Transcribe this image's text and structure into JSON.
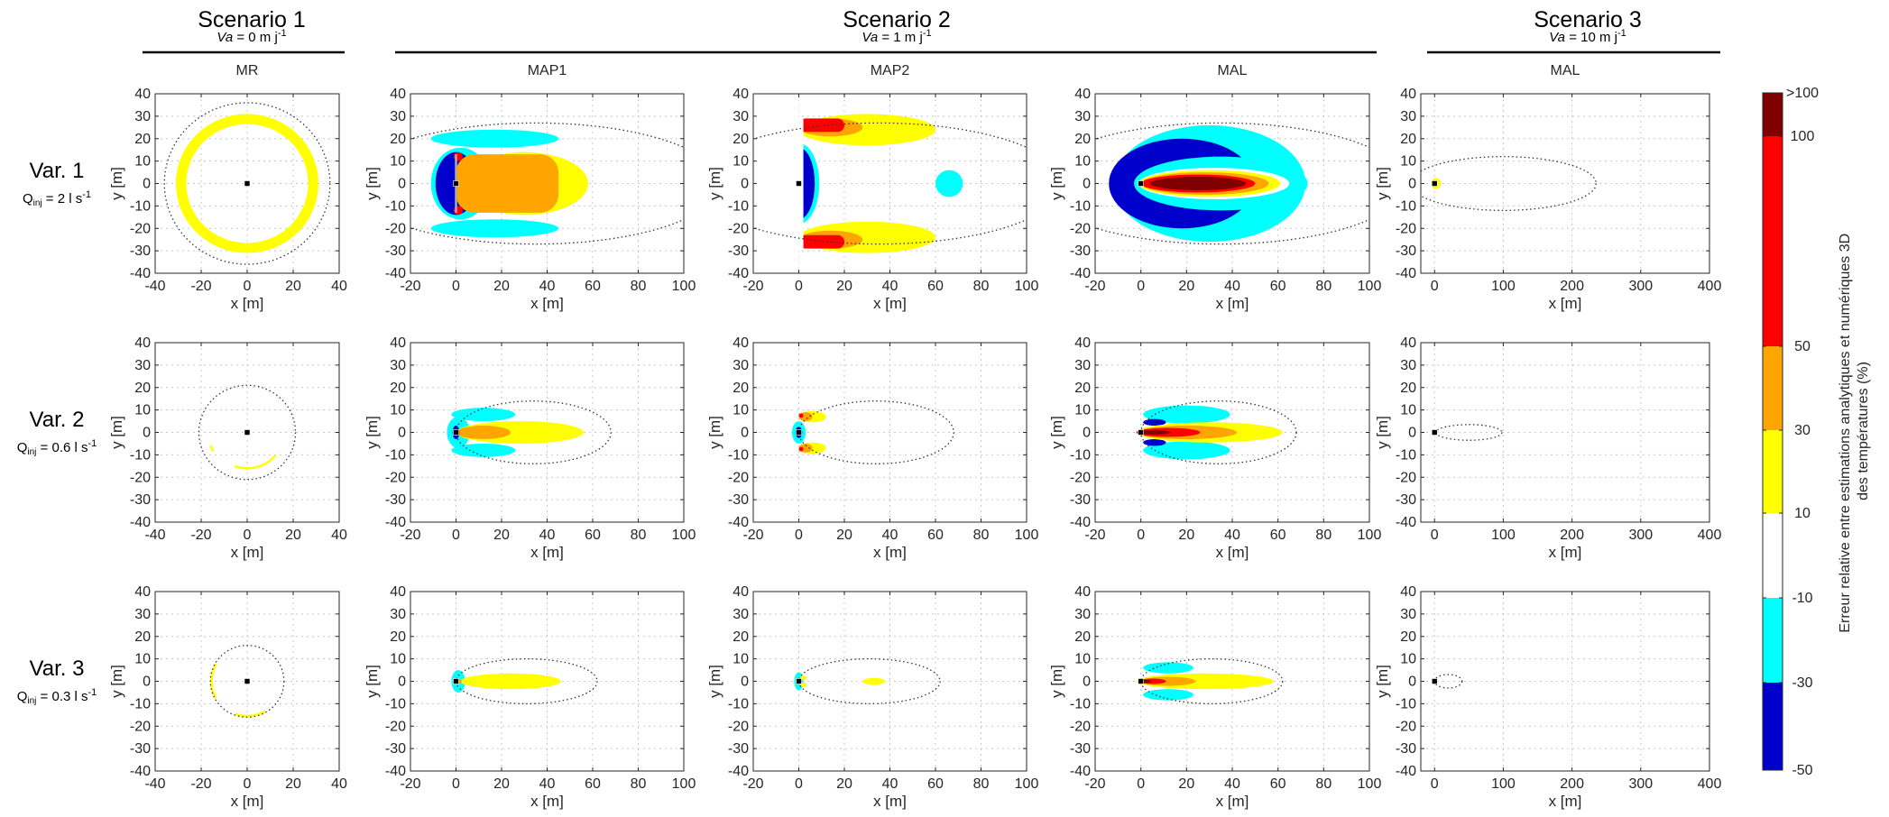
{
  "chart_data": {
    "type": "contour-map-grid",
    "scenarios": [
      {
        "name": "Scenario 1",
        "velocity_symbol": "Va",
        "velocity_text": " = 0 m j",
        "velocity_exp": "-1"
      },
      {
        "name": "Scenario 2",
        "velocity_symbol": "Va",
        "velocity_text": " = 1 m j",
        "velocity_exp": "-1"
      },
      {
        "name": "Scenario 3",
        "velocity_symbol": "Va",
        "velocity_text": " = 10 m j",
        "velocity_exp": "-1"
      }
    ],
    "columns": [
      {
        "title": "MR",
        "scenario": 0,
        "xlim": [
          -40,
          40
        ],
        "xticks": [
          -40,
          -20,
          0,
          20,
          40
        ]
      },
      {
        "title": "MAP1",
        "scenario": 1,
        "xlim": [
          -20,
          100
        ],
        "xticks": [
          -20,
          0,
          20,
          40,
          60,
          80,
          100
        ]
      },
      {
        "title": "MAP2",
        "scenario": 1,
        "xlim": [
          -20,
          100
        ],
        "xticks": [
          -20,
          0,
          20,
          40,
          60,
          80,
          100
        ]
      },
      {
        "title": "MAL",
        "scenario": 1,
        "xlim": [
          -20,
          100
        ],
        "xticks": [
          -20,
          0,
          20,
          40,
          60,
          80,
          100
        ]
      },
      {
        "title": "MAL",
        "scenario": 2,
        "xlim": [
          -20,
          400
        ],
        "xticks": [
          0,
          100,
          200,
          300,
          400
        ]
      }
    ],
    "rows": [
      {
        "label": "Var. 1",
        "q_prefix": "Q",
        "q_sub": "inj",
        "q_value": " = 2 l s",
        "q_exp": "-1"
      },
      {
        "label": "Var. 2",
        "q_prefix": "Q",
        "q_sub": "inj",
        "q_value": " = 0.6 l s",
        "q_exp": "-1"
      },
      {
        "label": "Var. 3",
        "q_prefix": "Q",
        "q_sub": "inj",
        "q_value": " = 0.3 l s",
        "q_exp": "-1"
      }
    ],
    "ylim": [
      -40,
      40
    ],
    "yticks": [
      -40,
      -30,
      -20,
      -10,
      0,
      10,
      20,
      30,
      40
    ],
    "xlabel": "x [m]",
    "ylabel": "y [m]",
    "grid": true,
    "colorbar": {
      "label_line1": "Erreur relative entre estimations analytiques et numériques 3D",
      "label_line2": "des  températures (%)",
      "bands": [
        {
          "from": -50,
          "to": -30,
          "color": "#0000cc"
        },
        {
          "from": -30,
          "to": -10,
          "color": "#00ffff"
        },
        {
          "from": -10,
          "to": 10,
          "color": "#ffffff"
        },
        {
          "from": 10,
          "to": 30,
          "color": "#ffff00"
        },
        {
          "from": 30,
          "to": 50,
          "color": "#ffa500"
        },
        {
          "from": 50,
          "to": 100,
          "color": "#ff0000"
        },
        {
          "from": 100,
          "to": ">100",
          "color": "#800000"
        }
      ],
      "tick_labels": [
        "-50",
        "-30",
        "-10",
        "10",
        "30",
        "50",
        "100",
        ">100"
      ]
    },
    "panels": [
      {
        "row": 0,
        "col": 0,
        "boundary": {
          "cx": 0,
          "cy": 0,
          "rx": 36,
          "ry": 36
        },
        "regions": [
          {
            "shape": "ring",
            "cx": 0,
            "cy": 0,
            "r_out": 31,
            "r_in": 26.5,
            "color": "#ffff00"
          }
        ]
      },
      {
        "row": 0,
        "col": 1,
        "boundary": {
          "cx": 35,
          "cy": 0,
          "rx": 81,
          "ry": 27
        },
        "regions": [
          {
            "shape": "ellipse",
            "cx": 17,
            "cy": 20,
            "rx": 28,
            "ry": 4,
            "color": "#00ffff"
          },
          {
            "shape": "ellipse",
            "cx": 17,
            "cy": -20,
            "rx": 28,
            "ry": 4,
            "color": "#00ffff"
          },
          {
            "shape": "ellipse",
            "cx": 2,
            "cy": 0,
            "rx": 13,
            "ry": 16,
            "color": "#00ffff"
          },
          {
            "shape": "ellipse",
            "cx": 0,
            "cy": 0,
            "rx": 9,
            "ry": 14,
            "color": "#0000cc"
          },
          {
            "shape": "ellipse",
            "cx": 30,
            "cy": 0,
            "rx": 28,
            "ry": 14,
            "color": "#ffff00"
          },
          {
            "shape": "rect",
            "x0": 0,
            "x1": 45,
            "y0": -13,
            "y1": 13,
            "rx": 8,
            "color": "#ffa500"
          },
          {
            "shape": "ellipse",
            "cx": 1,
            "cy": 12,
            "rx": 2,
            "ry": 2,
            "color": "#ff0000"
          },
          {
            "shape": "ellipse",
            "cx": 1,
            "cy": -12,
            "rx": 2,
            "ry": 2,
            "color": "#ff0000"
          },
          {
            "shape": "rect",
            "x0": -0.5,
            "x1": 0.5,
            "y0": -13,
            "y1": 13,
            "rx": 0,
            "color": "#aaaaaa"
          }
        ]
      },
      {
        "row": 0,
        "col": 2,
        "boundary": {
          "cx": 35,
          "cy": 0,
          "rx": 81,
          "ry": 27
        },
        "regions": [
          {
            "shape": "ellipse",
            "cx": 0,
            "cy": 0,
            "rx": 9,
            "ry": 18,
            "color": "#00ffff"
          },
          {
            "shape": "ellipse",
            "cx": 0,
            "cy": 0,
            "rx": 7,
            "ry": 16,
            "color": "#0000cc"
          },
          {
            "shape": "rect",
            "x0": -20,
            "x1": 0,
            "y0": -40,
            "y1": 40,
            "rx": 0,
            "color": "#ffffff"
          },
          {
            "shape": "ellipse",
            "cx": 30,
            "cy": 24,
            "rx": 30,
            "ry": 7,
            "color": "#ffff00"
          },
          {
            "shape": "ellipse",
            "cx": 30,
            "cy": -24,
            "rx": 30,
            "ry": 7,
            "color": "#ffff00"
          },
          {
            "shape": "ellipse",
            "cx": 14,
            "cy": 25,
            "rx": 14,
            "ry": 4,
            "color": "#ffa500"
          },
          {
            "shape": "ellipse",
            "cx": 14,
            "cy": -25,
            "rx": 14,
            "ry": 4,
            "color": "#ffa500"
          },
          {
            "shape": "rect",
            "x0": 0,
            "x1": 20,
            "y0": 23,
            "y1": 29,
            "rx": 3,
            "color": "#ff0000"
          },
          {
            "shape": "rect",
            "x0": 0,
            "x1": 20,
            "y0": -29,
            "y1": -23,
            "rx": 3,
            "color": "#ff0000"
          },
          {
            "shape": "rect",
            "x0": 0,
            "x1": 2,
            "y0": -29,
            "y1": 29,
            "rx": 0,
            "color": "#ffffff"
          },
          {
            "shape": "ellipse",
            "cx": 66,
            "cy": 0,
            "rx": 6,
            "ry": 6,
            "color": "#00ffff"
          }
        ]
      },
      {
        "row": 0,
        "col": 3,
        "boundary": {
          "cx": 35,
          "cy": 0,
          "rx": 81,
          "ry": 27
        },
        "regions": [
          {
            "shape": "ellipse",
            "cx": 30,
            "cy": 0,
            "rx": 42,
            "ry": 26,
            "color": "#00ffff"
          },
          {
            "shape": "ellipse",
            "cx": 18,
            "cy": 0,
            "rx": 32,
            "ry": 20,
            "color": "#0000cc"
          },
          {
            "shape": "ellipse",
            "cx": 35,
            "cy": 0,
            "rx": 38,
            "ry": 12,
            "color": "#00ffff"
          },
          {
            "shape": "ellipse",
            "cx": 32,
            "cy": 0,
            "rx": 33,
            "ry": 7,
            "color": "#ffffff"
          },
          {
            "shape": "ellipse",
            "cx": 30,
            "cy": 0,
            "rx": 31,
            "ry": 6,
            "color": "#ffff00"
          },
          {
            "shape": "ellipse",
            "cx": 28,
            "cy": 0,
            "rx": 28,
            "ry": 5,
            "color": "#ffa500"
          },
          {
            "shape": "ellipse",
            "cx": 25,
            "cy": 0,
            "rx": 25,
            "ry": 4,
            "color": "#ff0000"
          },
          {
            "shape": "ellipse",
            "cx": 25,
            "cy": 0,
            "rx": 21,
            "ry": 3,
            "color": "#800000"
          }
        ]
      },
      {
        "row": 0,
        "col": 4,
        "boundary": {
          "cx": 100,
          "cy": 0,
          "rx": 135,
          "ry": 12
        },
        "regions": [
          {
            "shape": "ellipse",
            "cx": 2,
            "cy": 0,
            "rx": 7,
            "ry": 2.5,
            "color": "#ffff00"
          },
          {
            "shape": "ellipse",
            "cx": 0,
            "cy": 0,
            "rx": 3,
            "ry": 1.5,
            "color": "#ffa500"
          }
        ]
      },
      {
        "row": 1,
        "col": 0,
        "boundary": {
          "cx": 0,
          "cy": 0,
          "rx": 21,
          "ry": 21
        },
        "regions": [
          {
            "shape": "arc",
            "cx": 0,
            "cy": 0,
            "r": 17,
            "a0": 200,
            "a1": 210,
            "w": 1,
            "color": "#ffff00"
          },
          {
            "shape": "arc",
            "cx": 0,
            "cy": 0,
            "r": 16,
            "a0": 250,
            "a1": 320,
            "w": 1,
            "color": "#ffff00"
          }
        ]
      },
      {
        "row": 1,
        "col": 1,
        "boundary": {
          "cx": 34,
          "cy": 0,
          "rx": 34,
          "ry": 14
        },
        "regions": [
          {
            "shape": "ellipse",
            "cx": 12,
            "cy": 8,
            "rx": 14,
            "ry": 3,
            "color": "#00ffff"
          },
          {
            "shape": "ellipse",
            "cx": 12,
            "cy": -8,
            "rx": 14,
            "ry": 3,
            "color": "#00ffff"
          },
          {
            "shape": "ellipse",
            "cx": 1,
            "cy": 0,
            "rx": 5,
            "ry": 7,
            "color": "#00ffff"
          },
          {
            "shape": "ellipse",
            "cx": 28,
            "cy": 0,
            "rx": 28,
            "ry": 5,
            "color": "#ffff00"
          },
          {
            "shape": "ellipse",
            "cx": 12,
            "cy": 0,
            "rx": 12,
            "ry": 3,
            "color": "#ffa500"
          },
          {
            "shape": "ellipse",
            "cx": 0,
            "cy": 0,
            "rx": 1.5,
            "ry": 3,
            "color": "#0000cc"
          }
        ]
      },
      {
        "row": 1,
        "col": 2,
        "boundary": {
          "cx": 34,
          "cy": 0,
          "rx": 34,
          "ry": 14
        },
        "regions": [
          {
            "shape": "ellipse",
            "cx": 6,
            "cy": 7,
            "rx": 6,
            "ry": 2.5,
            "color": "#ffff00"
          },
          {
            "shape": "ellipse",
            "cx": 6,
            "cy": -7,
            "rx": 6,
            "ry": 2.5,
            "color": "#ffff00"
          },
          {
            "shape": "ellipse",
            "cx": 3,
            "cy": 7,
            "rx": 3,
            "ry": 2,
            "color": "#ffa500"
          },
          {
            "shape": "ellipse",
            "cx": 3,
            "cy": -7,
            "rx": 3,
            "ry": 2,
            "color": "#ffa500"
          },
          {
            "shape": "ellipse",
            "cx": 0,
            "cy": 0,
            "rx": 3,
            "ry": 5,
            "color": "#00ffff"
          },
          {
            "shape": "ellipse",
            "cx": 0,
            "cy": 0,
            "rx": 1.5,
            "ry": 2.5,
            "color": "#0000cc"
          },
          {
            "shape": "ellipse",
            "cx": 1,
            "cy": 7.5,
            "rx": 1,
            "ry": 1,
            "color": "#ff0000"
          },
          {
            "shape": "ellipse",
            "cx": 1,
            "cy": -7.5,
            "rx": 1,
            "ry": 1,
            "color": "#ff0000"
          }
        ]
      },
      {
        "row": 1,
        "col": 3,
        "boundary": {
          "cx": 34,
          "cy": 0,
          "rx": 34,
          "ry": 14
        },
        "regions": [
          {
            "shape": "ellipse",
            "cx": 20,
            "cy": 8,
            "rx": 19,
            "ry": 4,
            "color": "#00ffff"
          },
          {
            "shape": "ellipse",
            "cx": 20,
            "cy": -8,
            "rx": 19,
            "ry": 4,
            "color": "#00ffff"
          },
          {
            "shape": "ellipse",
            "cx": 6,
            "cy": 4.5,
            "rx": 5,
            "ry": 1.5,
            "color": "#0000cc"
          },
          {
            "shape": "ellipse",
            "cx": 6,
            "cy": -4.5,
            "rx": 5,
            "ry": 1.5,
            "color": "#0000cc"
          },
          {
            "shape": "ellipse",
            "cx": 30,
            "cy": 0,
            "rx": 32,
            "ry": 4.5,
            "color": "#ffff00"
          },
          {
            "shape": "ellipse",
            "cx": 20,
            "cy": 0,
            "rx": 22,
            "ry": 3,
            "color": "#ffa500"
          },
          {
            "shape": "ellipse",
            "cx": 12,
            "cy": 0,
            "rx": 14,
            "ry": 2,
            "color": "#ff0000"
          },
          {
            "shape": "ellipse",
            "cx": 6,
            "cy": 0,
            "rx": 7,
            "ry": 1,
            "color": "#800000"
          }
        ]
      },
      {
        "row": 1,
        "col": 4,
        "boundary": {
          "cx": 50,
          "cy": 0,
          "rx": 48,
          "ry": 3.5
        },
        "regions": []
      },
      {
        "row": 2,
        "col": 0,
        "boundary": {
          "cx": 0,
          "cy": 0,
          "rx": 16,
          "ry": 16
        },
        "regions": [
          {
            "shape": "arc",
            "cx": 0,
            "cy": 0,
            "r": 15.5,
            "a0": 150,
            "a1": 210,
            "w": 1,
            "color": "#ffff00"
          },
          {
            "shape": "arc",
            "cx": 0,
            "cy": 0,
            "r": 15.5,
            "a0": 250,
            "a1": 300,
            "w": 1,
            "color": "#ffff00"
          }
        ]
      },
      {
        "row": 2,
        "col": 1,
        "boundary": {
          "cx": 31,
          "cy": 0,
          "rx": 31,
          "ry": 10
        },
        "regions": [
          {
            "shape": "ellipse",
            "cx": 1,
            "cy": 0,
            "rx": 3,
            "ry": 5,
            "color": "#00ffff"
          },
          {
            "shape": "ellipse",
            "cx": 24,
            "cy": 0,
            "rx": 22,
            "ry": 3.5,
            "color": "#ffff00"
          },
          {
            "shape": "ellipse",
            "cx": 1,
            "cy": 0,
            "rx": 1.5,
            "ry": 1,
            "color": "#ffa500"
          }
        ]
      },
      {
        "row": 2,
        "col": 2,
        "boundary": {
          "cx": 31,
          "cy": 0,
          "rx": 31,
          "ry": 10
        },
        "regions": [
          {
            "shape": "ellipse",
            "cx": 0,
            "cy": 0,
            "rx": 2,
            "ry": 4,
            "color": "#00ffff"
          },
          {
            "shape": "ellipse",
            "cx": 33,
            "cy": 0,
            "rx": 5,
            "ry": 1.5,
            "color": "#ffff00"
          },
          {
            "shape": "ellipse",
            "cx": 2,
            "cy": 1.5,
            "rx": 1.5,
            "ry": 1,
            "color": "#ffff00"
          },
          {
            "shape": "ellipse",
            "cx": 2,
            "cy": -1.5,
            "rx": 1.5,
            "ry": 1,
            "color": "#ffff00"
          }
        ]
      },
      {
        "row": 2,
        "col": 3,
        "boundary": {
          "cx": 31,
          "cy": 0,
          "rx": 31,
          "ry": 10
        },
        "regions": [
          {
            "shape": "ellipse",
            "cx": 12,
            "cy": 6,
            "rx": 11,
            "ry": 2.5,
            "color": "#00ffff"
          },
          {
            "shape": "ellipse",
            "cx": 12,
            "cy": -6,
            "rx": 11,
            "ry": 2.5,
            "color": "#00ffff"
          },
          {
            "shape": "ellipse",
            "cx": 28,
            "cy": 0,
            "rx": 30,
            "ry": 3.5,
            "color": "#ffff00"
          },
          {
            "shape": "ellipse",
            "cx": 12,
            "cy": 0,
            "rx": 12,
            "ry": 2,
            "color": "#ffa500"
          },
          {
            "shape": "ellipse",
            "cx": 5,
            "cy": 0,
            "rx": 6,
            "ry": 1.2,
            "color": "#ff0000"
          },
          {
            "shape": "ellipse",
            "cx": 2,
            "cy": 0,
            "rx": 2.5,
            "ry": 0.7,
            "color": "#800000"
          }
        ]
      },
      {
        "row": 2,
        "col": 4,
        "boundary": {
          "cx": 20,
          "cy": 0,
          "rx": 20,
          "ry": 3
        },
        "regions": []
      }
    ]
  }
}
